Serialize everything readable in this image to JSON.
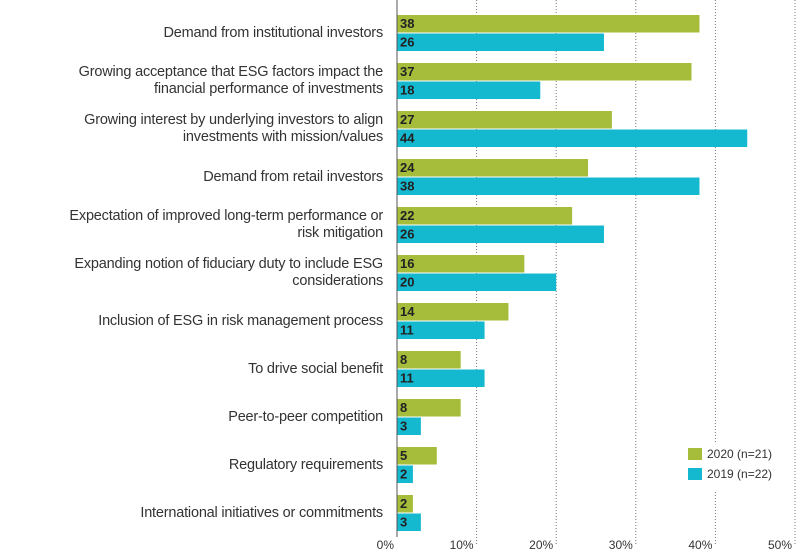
{
  "chart_data": {
    "type": "bar",
    "orientation": "horizontal",
    "categories": [
      "Demand from institutional investors",
      "Growing acceptance that ESG factors impact the\nfinancial performance of investments",
      "Growing interest by underlying investors to align\ninvestments with mission/values",
      "Demand from retail investors",
      "Expectation of improved long-term performance or\nrisk mitigation",
      "Expanding notion of fiduciary duty to include ESG\nconsiderations",
      "Inclusion of ESG in risk management process",
      "To drive social benefit",
      "Peer-to-peer competition",
      "Regulatory requirements",
      "International initiatives or commitments"
    ],
    "series": [
      {
        "name": "2020 (n=21)",
        "color": "#a5bd3b",
        "values": [
          38,
          37,
          27,
          24,
          22,
          16,
          14,
          8,
          8,
          5,
          2
        ]
      },
      {
        "name": "2019 (n=22)",
        "color": "#14b9d0",
        "values": [
          26,
          18,
          44,
          38,
          26,
          20,
          11,
          11,
          3,
          2,
          3
        ]
      }
    ],
    "xlim": [
      0,
      50
    ],
    "xticks": [
      {
        "value": 0,
        "label": "0%"
      },
      {
        "value": 10,
        "label": "10%"
      },
      {
        "value": 20,
        "label": "20%"
      },
      {
        "value": 30,
        "label": "30%"
      },
      {
        "value": 40,
        "label": "40%"
      },
      {
        "value": 50,
        "label": "50%"
      }
    ],
    "grid": true,
    "legend": "lower right"
  }
}
